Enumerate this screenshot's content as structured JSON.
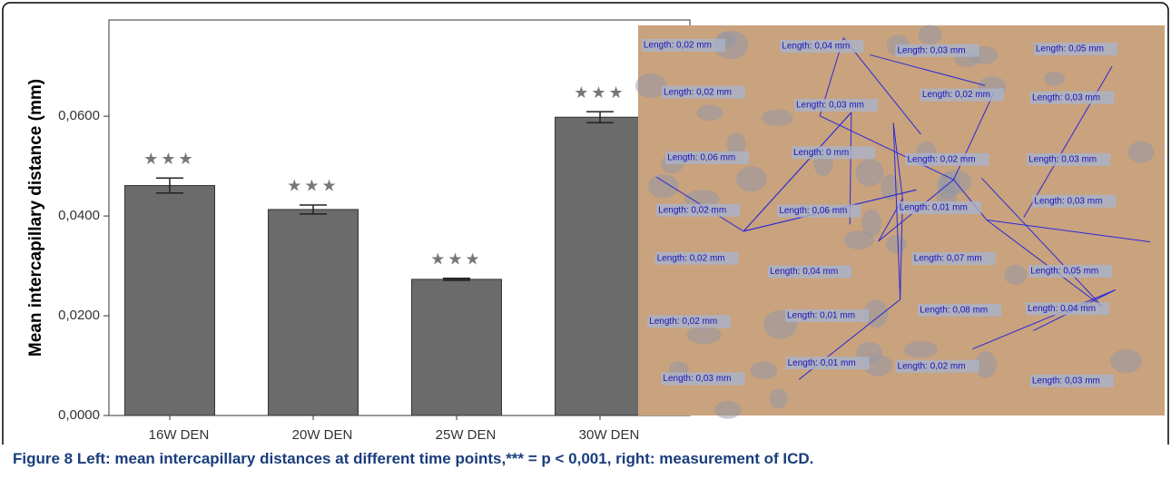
{
  "chart_data": {
    "type": "bar",
    "y_label": "Mean intercapillary distance (mm)",
    "categories": [
      "16W DEN",
      "20W DEN",
      "25W DEN",
      "30W DEN"
    ],
    "values": [
      0.0461,
      0.0413,
      0.0273,
      0.0598
    ],
    "errors": [
      0.0015,
      0.0009,
      0.0002,
      0.0011
    ],
    "annotations": [
      "★★★",
      "★★★",
      "★★★",
      "★★★"
    ],
    "color": "#6b6b6b",
    "ylim": [
      0,
      0.0793
    ],
    "yticks": [
      {
        "value": 0,
        "label": "0,0000"
      },
      {
        "value": 0.02,
        "label": "0,0200"
      },
      {
        "value": 0.04,
        "label": "0,0400"
      },
      {
        "value": 0.06,
        "label": "0,0600"
      }
    ]
  },
  "image": {
    "labels": [
      "Length: 0,02 mm",
      "Length: 0,04 mm",
      "Length: 0,03 mm",
      "Length: 0,05 mm",
      "Length: 0,02 mm",
      "Length: 0,03 mm",
      "Length: 0,02 mm",
      "Length: 0,03 mm",
      "Length: 0,06 mm",
      "Length: 0 mm",
      "Length: 0,02 mm",
      "Length: 0,03 mm",
      "Length: 0,02 mm",
      "Length: 0,06 mm",
      "Length: 0,01 mm",
      "Length: 0,03 mm",
      "Length: 0,02 mm",
      "Length: 0,04 mm",
      "Length: 0,07 mm",
      "Length: 0,05 mm",
      "Length: 0,02 mm",
      "Length: 0,01 mm",
      "Length: 0,08 mm",
      "Length: 0,04 mm",
      "Length: 0,03 mm",
      "Length: 0,01 mm",
      "Length: 0,02 mm",
      "Length: 0,03 mm"
    ]
  },
  "caption": {
    "label": "Figure 8",
    "text": "Left: mean intercapillary distances at different time points,*** = p < 0,001, right: measurement of ICD."
  }
}
